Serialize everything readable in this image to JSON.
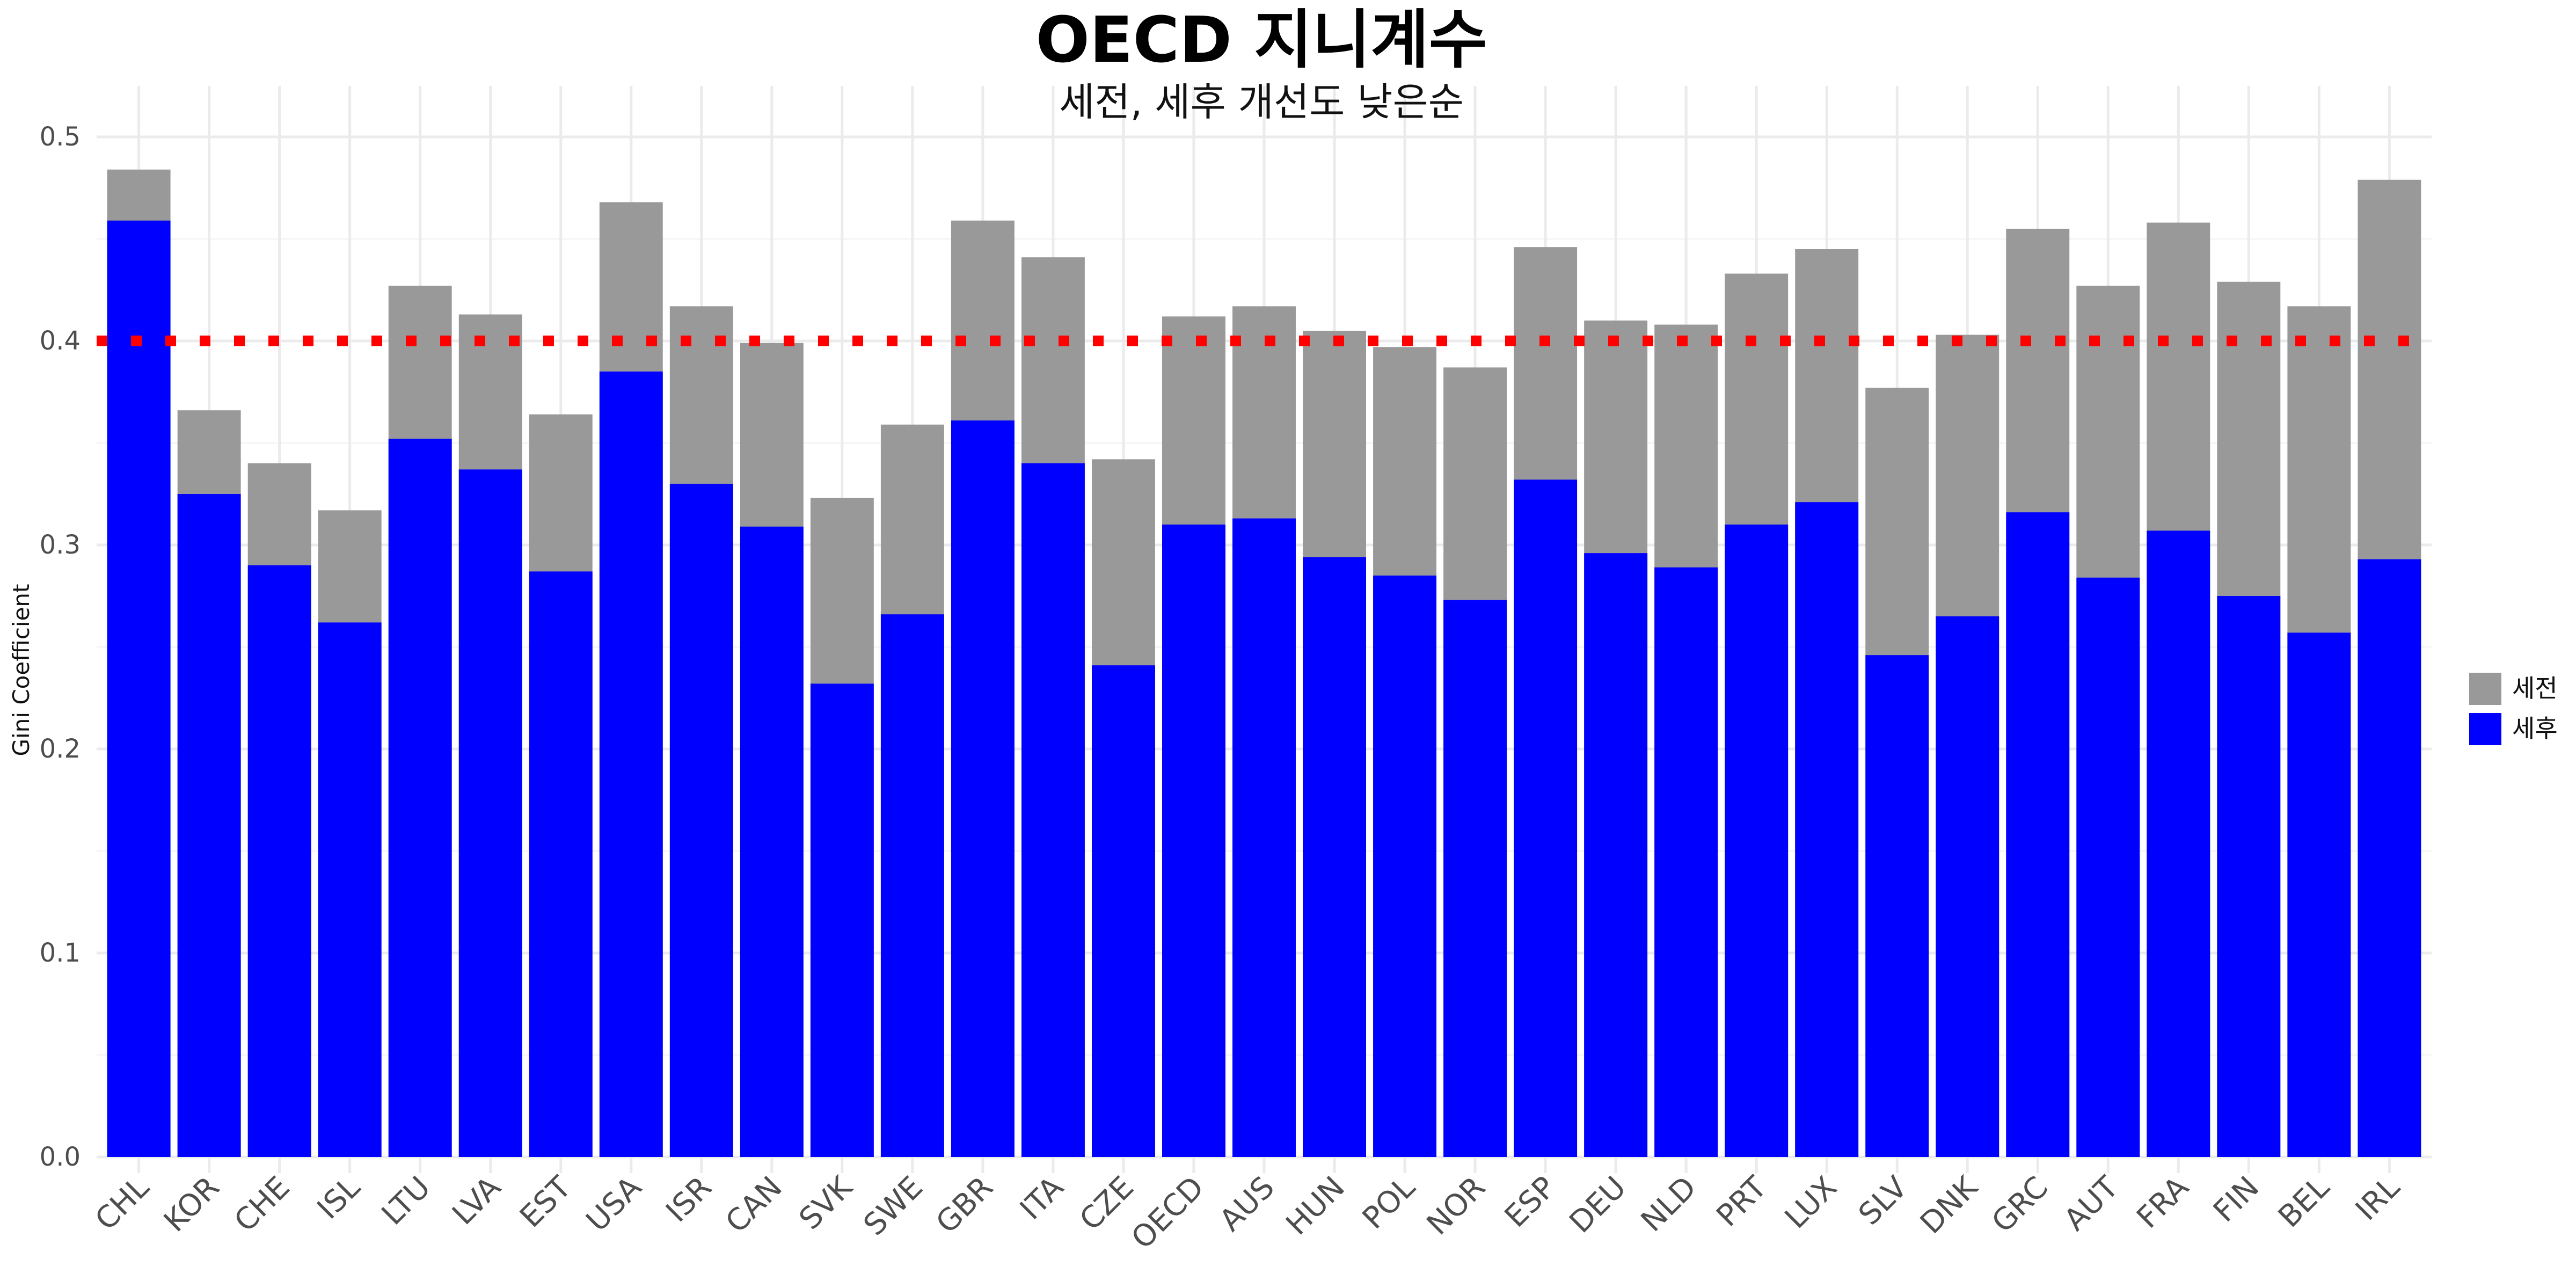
{
  "chart_data": {
    "type": "bar",
    "title": "OECD 지니계수",
    "subtitle": "세전, 세후 개선도 낮은순",
    "xlabel": "",
    "ylabel": "Gini Coefficient",
    "ylim": [
      0,
      0.5
    ],
    "y_ticks": [
      "0.0",
      "0.1",
      "0.2",
      "0.3",
      "0.4",
      "0.5"
    ],
    "grid": true,
    "legend_position": "right",
    "reference_line": {
      "value": 0.4,
      "color": "#ff0000",
      "style": "dotted"
    },
    "categories": [
      "CHL",
      "KOR",
      "CHE",
      "ISL",
      "LTU",
      "LVA",
      "EST",
      "USA",
      "ISR",
      "CAN",
      "SVK",
      "SWE",
      "GBR",
      "ITA",
      "CZE",
      "OECD",
      "AUS",
      "HUN",
      "POL",
      "NOR",
      "ESP",
      "DEU",
      "NLD",
      "PRT",
      "LUX",
      "SLV",
      "DNK",
      "GRC",
      "AUT",
      "FRA",
      "FIN",
      "BEL",
      "IRL"
    ],
    "series": [
      {
        "name": "세전",
        "color": "#999999",
        "values": [
          0.484,
          0.366,
          0.34,
          0.317,
          0.427,
          0.413,
          0.364,
          0.468,
          0.417,
          0.399,
          0.323,
          0.359,
          0.459,
          0.441,
          0.342,
          0.412,
          0.417,
          0.405,
          0.397,
          0.387,
          0.446,
          0.41,
          0.408,
          0.433,
          0.445,
          0.377,
          0.403,
          0.455,
          0.427,
          0.458,
          0.429,
          0.417,
          0.479
        ]
      },
      {
        "name": "세후",
        "color": "#0000ff",
        "values": [
          0.459,
          0.325,
          0.29,
          0.262,
          0.352,
          0.337,
          0.287,
          0.385,
          0.33,
          0.309,
          0.232,
          0.266,
          0.361,
          0.34,
          0.241,
          0.31,
          0.313,
          0.294,
          0.285,
          0.273,
          0.332,
          0.296,
          0.289,
          0.31,
          0.321,
          0.246,
          0.265,
          0.316,
          0.284,
          0.307,
          0.275,
          0.257,
          0.293
        ]
      }
    ]
  }
}
